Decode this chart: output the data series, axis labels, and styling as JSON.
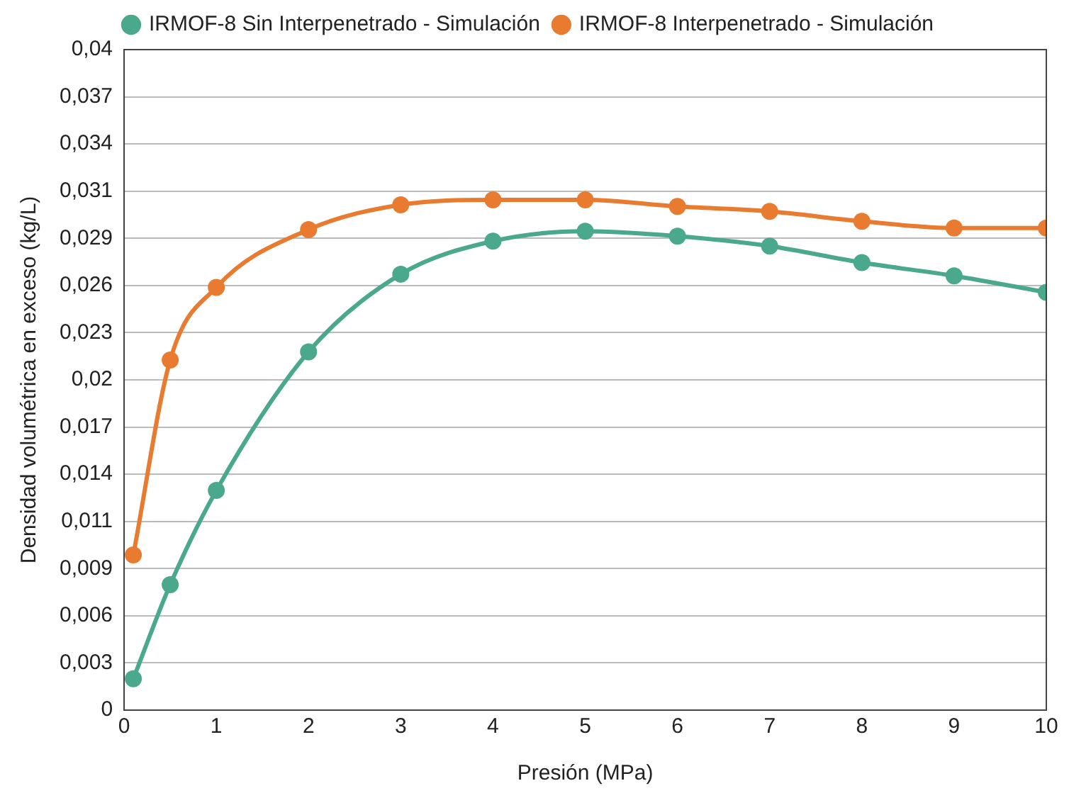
{
  "chart_data": {
    "type": "line",
    "xlabel": "Presión (MPa)",
    "ylabel": "Densidad volumétrica en exceso (kg/L)",
    "x": [
      0.1,
      0.5,
      1,
      2,
      3,
      4,
      5,
      6,
      7,
      8,
      9,
      10
    ],
    "series": [
      {
        "name": "IRMOF-8 Sin Interpenetrado - Simulación",
        "color": "#4aa88c",
        "values": [
          0.0019,
          0.0076,
          0.0133,
          0.0217,
          0.0264,
          0.0284,
          0.029,
          0.0287,
          0.0281,
          0.0271,
          0.0263,
          0.0253
        ]
      },
      {
        "name": "IRMOF-8 Interpenetrado - Simulación",
        "color": "#e87b2f",
        "values": [
          0.0094,
          0.0212,
          0.0256,
          0.0291,
          0.0306,
          0.0309,
          0.0309,
          0.0305,
          0.0302,
          0.0296,
          0.0292,
          0.0292
        ]
      }
    ],
    "xlim": [
      0,
      10
    ],
    "xticks": [
      0,
      1,
      2,
      3,
      4,
      5,
      6,
      7,
      8,
      9,
      10
    ],
    "ylim": [
      0,
      0.04
    ],
    "yticks": [
      0,
      {
        "value": 0.0028571,
        "label": "0,003"
      },
      {
        "value": 0.0057143,
        "label": "0,006"
      },
      {
        "value": 0.0085714,
        "label": "0,009"
      },
      {
        "value": 0.0114286,
        "label": "0,011"
      },
      {
        "value": 0.0142857,
        "label": "0,014"
      },
      {
        "value": 0.0171429,
        "label": "0,017"
      },
      {
        "value": 0.02,
        "label": "0,02"
      },
      {
        "value": 0.0228571,
        "label": "0,023"
      },
      {
        "value": 0.0257143,
        "label": "0,026"
      },
      {
        "value": 0.0285714,
        "label": "0,029"
      },
      {
        "value": 0.0314286,
        "label": "0,031"
      },
      {
        "value": 0.0342857,
        "label": "0,034"
      },
      {
        "value": 0.0371429,
        "label": "0,037"
      },
      {
        "value": 0.04,
        "label": "0,04"
      }
    ],
    "grid": "y",
    "legend": "top",
    "marker": "circle",
    "line_style": "solid"
  }
}
